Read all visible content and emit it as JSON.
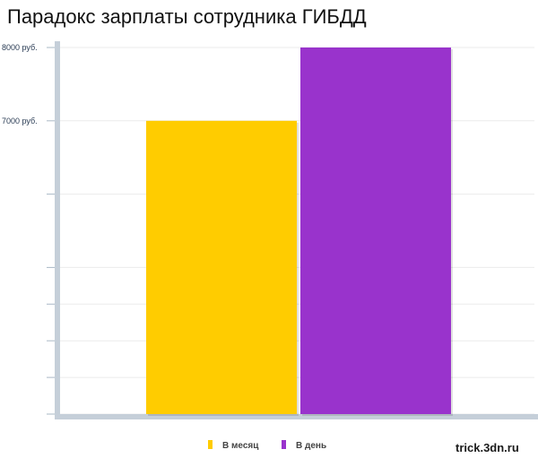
{
  "chart_data": {
    "type": "bar",
    "title": "Парадокс зарплаты сотрудника ГИБДД",
    "categories": [
      "В месяц",
      "В день"
    ],
    "values": [
      7000,
      8000
    ],
    "colors": [
      "#ffcc00",
      "#9933cc"
    ],
    "ylim": [
      3000,
      8000
    ],
    "y_ticks": [
      {
        "value": 8000,
        "label": "8000 руб."
      },
      {
        "value": 7000,
        "label": "7000 руб."
      }
    ],
    "y_gridlines": [
      3000,
      3500,
      4000,
      4500,
      5000,
      6000,
      7000,
      8000
    ],
    "grid": true,
    "legend": {
      "placement": "bottom-center",
      "entries": [
        {
          "label": "В месяц",
          "color": "#ffcc00"
        },
        {
          "label": "В день",
          "color": "#9933cc"
        }
      ]
    },
    "axis_color": "#c5cfd9"
  },
  "watermark": "trick.3dn.ru"
}
